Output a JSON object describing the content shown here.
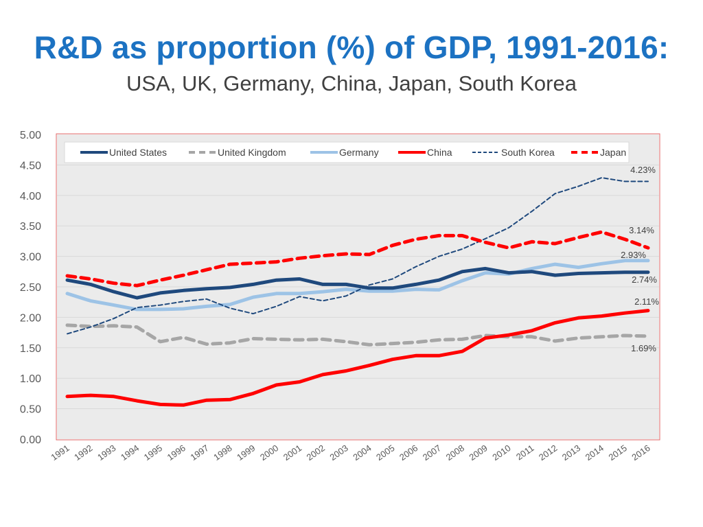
{
  "header": {
    "title": "R&D as proportion (%) of GDP, 1991-2016:",
    "subtitle": "USA, UK, Germany, China, Japan, South Korea"
  },
  "chart_data": {
    "type": "line",
    "title": "R&D as proportion (%) of GDP, 1991-2016:",
    "subtitle": "USA, UK, Germany, China, Japan, South Korea",
    "xlabel": "",
    "ylabel": "",
    "ylim": [
      0,
      5
    ],
    "yticks": [
      "0.00",
      "0.50",
      "1.00",
      "1.50",
      "2.00",
      "2.50",
      "3.00",
      "3.50",
      "4.00",
      "4.50",
      "5.00"
    ],
    "grid": true,
    "legend_position": "top",
    "x": [
      "1991",
      "1992",
      "1993",
      "1994",
      "1995",
      "1996",
      "1997",
      "1998",
      "1999",
      "2000",
      "2001",
      "2002",
      "2003",
      "2004",
      "2005",
      "2006",
      "2007",
      "2008",
      "2009",
      "2010",
      "2011",
      "2012",
      "2013",
      "2014",
      "2015",
      "2016"
    ],
    "series": [
      {
        "name": "United States",
        "color": "#1f497d",
        "style": "solid-thick",
        "values": [
          2.61,
          2.54,
          2.42,
          2.32,
          2.4,
          2.44,
          2.47,
          2.49,
          2.54,
          2.61,
          2.63,
          2.54,
          2.54,
          2.48,
          2.48,
          2.54,
          2.61,
          2.75,
          2.8,
          2.73,
          2.75,
          2.69,
          2.72,
          2.73,
          2.74,
          2.74
        ],
        "end_label": "2.74%"
      },
      {
        "name": "United Kingdom",
        "color": "#a6a6a6",
        "style": "dashed-thick",
        "values": [
          1.87,
          1.85,
          1.86,
          1.84,
          1.6,
          1.67,
          1.56,
          1.58,
          1.65,
          1.64,
          1.63,
          1.64,
          1.6,
          1.55,
          1.57,
          1.59,
          1.63,
          1.64,
          1.7,
          1.68,
          1.68,
          1.61,
          1.66,
          1.68,
          1.7,
          1.69
        ],
        "end_label": "1.69%"
      },
      {
        "name": "Germany",
        "color": "#9dc3e6",
        "style": "solid-thick",
        "values": [
          2.39,
          2.27,
          2.2,
          2.13,
          2.13,
          2.14,
          2.18,
          2.21,
          2.33,
          2.39,
          2.39,
          2.42,
          2.46,
          2.43,
          2.43,
          2.46,
          2.45,
          2.6,
          2.73,
          2.71,
          2.8,
          2.87,
          2.82,
          2.88,
          2.93,
          2.93
        ],
        "end_label": "2.93%"
      },
      {
        "name": "China",
        "color": "#ff0000",
        "style": "solid-thick",
        "values": [
          0.7,
          0.72,
          0.7,
          0.63,
          0.57,
          0.56,
          0.64,
          0.65,
          0.75,
          0.89,
          0.94,
          1.06,
          1.12,
          1.21,
          1.31,
          1.37,
          1.37,
          1.44,
          1.66,
          1.71,
          1.78,
          1.91,
          1.99,
          2.02,
          2.07,
          2.11
        ],
        "end_label": "2.11%"
      },
      {
        "name": "South Korea",
        "color": "#1f497d",
        "style": "dashed-thin",
        "values": [
          1.73,
          1.84,
          1.98,
          2.16,
          2.2,
          2.26,
          2.3,
          2.15,
          2.06,
          2.18,
          2.34,
          2.27,
          2.35,
          2.53,
          2.63,
          2.83,
          3.0,
          3.12,
          3.29,
          3.47,
          3.74,
          4.03,
          4.15,
          4.29,
          4.23,
          4.23
        ],
        "end_label": "4.23%"
      },
      {
        "name": "Japan",
        "color": "#ff0000",
        "style": "dashed-thick",
        "values": [
          2.68,
          2.63,
          2.56,
          2.52,
          2.61,
          2.69,
          2.78,
          2.87,
          2.89,
          2.91,
          2.97,
          3.01,
          3.04,
          3.03,
          3.18,
          3.28,
          3.34,
          3.34,
          3.23,
          3.14,
          3.24,
          3.21,
          3.31,
          3.4,
          3.28,
          3.14
        ],
        "end_label": "3.14%"
      }
    ]
  }
}
